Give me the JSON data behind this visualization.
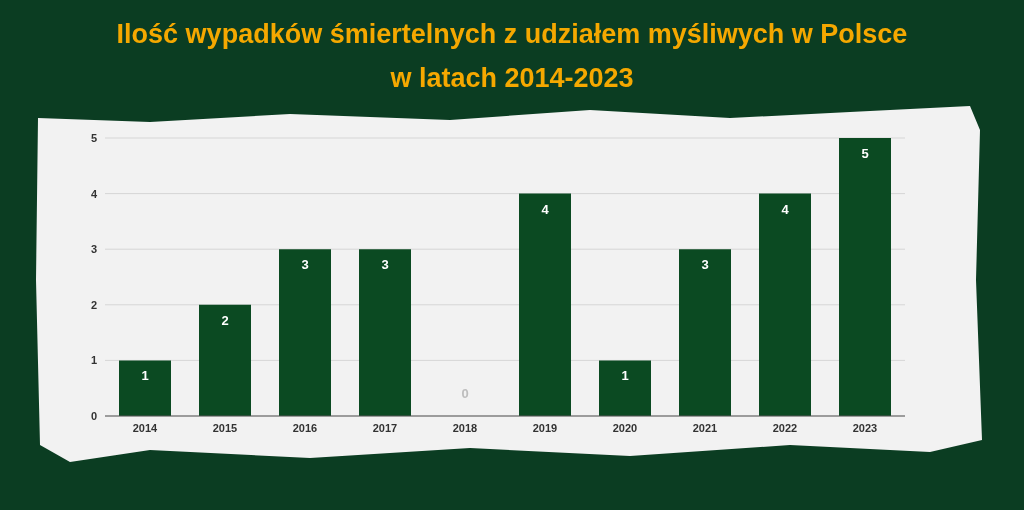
{
  "chart_data": {
    "type": "bar",
    "title": "Ilość wypadków śmiertelnych z udziałem myśliwych w Polsce w latach 2014-2023",
    "categories": [
      "2014",
      "2015",
      "2016",
      "2017",
      "2018",
      "2019",
      "2020",
      "2021",
      "2022",
      "2023"
    ],
    "values": [
      1,
      2,
      3,
      3,
      0,
      4,
      1,
      3,
      4,
      5
    ],
    "color": "#0b4a22",
    "ylim": [
      0,
      5
    ],
    "yticks": [
      0,
      1,
      2,
      3,
      4,
      5
    ],
    "grid": "y",
    "data_labels": true
  }
}
